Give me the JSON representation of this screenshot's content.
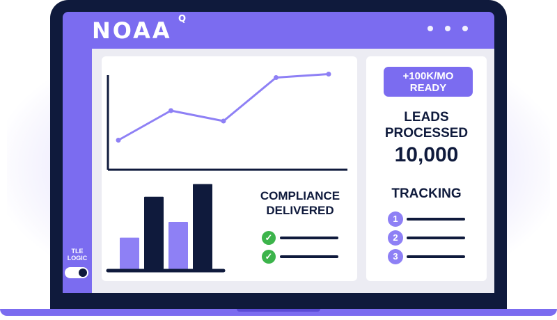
{
  "app": {
    "logo": "NOAA",
    "logo_sup": "Q"
  },
  "sidebar": {
    "toggle_label": "TLE LOGIC",
    "toggle_on": true
  },
  "compliance": {
    "title_line1": "COMPLIANCE",
    "title_line2": "DELIVERED",
    "checks": [
      "check",
      "check"
    ]
  },
  "stats": {
    "badge_line1": "+100K/MO",
    "badge_line2": "READY",
    "label_line1": "LEADS",
    "label_line2": "PROCESSED",
    "value": "10,000"
  },
  "tracking": {
    "title": "TRACKING",
    "items": [
      "1",
      "2",
      "3"
    ]
  },
  "colors": {
    "accent": "#7b6cf0",
    "dark": "#0f1a3c",
    "success": "#3cb44b"
  },
  "chart_data": [
    {
      "type": "line",
      "x": [
        1,
        2,
        3,
        4,
        5
      ],
      "values": [
        1.5,
        3.2,
        2.6,
        5.1,
        5.3
      ],
      "ylim": [
        0,
        6
      ],
      "grid": false
    },
    {
      "type": "bar",
      "categories": [
        "1",
        "2",
        "3",
        "4"
      ],
      "values": [
        2.0,
        4.6,
        3.0,
        5.4
      ],
      "ylim": [
        0,
        6
      ],
      "bar_colors": [
        "#8e80f5",
        "#0f1a3c",
        "#8e80f5",
        "#0f1a3c"
      ],
      "grid": false
    }
  ]
}
